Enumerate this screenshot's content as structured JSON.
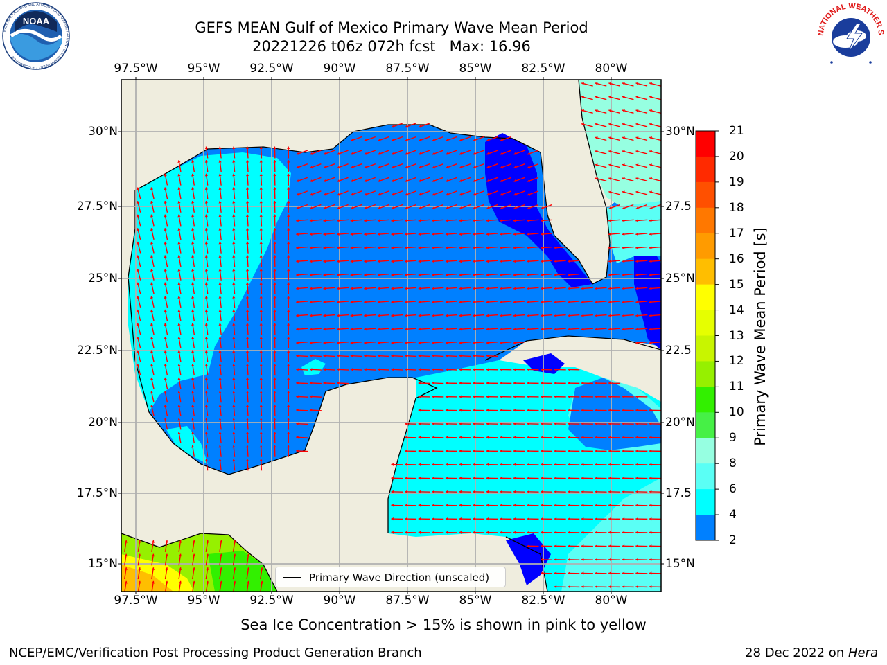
{
  "title": {
    "line1": "GEFS MEAN Gulf of Mexico Primary Wave Mean Period",
    "line2": "20221226 t06z 072h fcst   Max: 16.96"
  },
  "map": {
    "lon_ticks": [
      "97.5°W",
      "95°W",
      "92.5°W",
      "90°W",
      "87.5°W",
      "85°W",
      "82.5°W",
      "80°W"
    ],
    "lat_ticks_left": [
      "30°N",
      "27.5°N",
      "25°N",
      "22.5°N",
      "20°N",
      "17.5°N",
      "15°N"
    ],
    "lat_ticks_right": [
      "30°N",
      "27.5",
      "25°N",
      "22.5",
      "20°N",
      "17.5",
      "15°N"
    ],
    "legend_label": "Primary Wave Direction (unscaled)",
    "land_color": "#efedde",
    "grid_color": "#b0b0b0",
    "arrow_color": "#ff0000"
  },
  "colorbar": {
    "title": "Primary Wave Mean Period [s]",
    "labels": [
      "21",
      "20",
      "19",
      "18",
      "17",
      "16",
      "15",
      "14",
      "13",
      "12",
      "11",
      "10",
      "9",
      "8",
      "6",
      "4",
      "2"
    ],
    "colors": [
      "#ff0000",
      "#ff2a00",
      "#ff5000",
      "#ff7800",
      "#ff9b00",
      "#ffbe00",
      "#ffff00",
      "#e6ff00",
      "#c8f500",
      "#96f000",
      "#32f000",
      "#46f046",
      "#96ffe1",
      "#5afff5",
      "#00ffff",
      "#0080ff",
      "#0000ff"
    ]
  },
  "logos": {
    "noaa_text": "NOAA",
    "noaa_ring": "NATIONAL OCEANIC AND ATMOSPHERIC ADMINISTRATION · U.S. DEPARTMENT OF COMMERCE",
    "nws_ring": "NATIONAL WEATHER SERVICE"
  },
  "caption": "Sea Ice Concentration > 15% is shown in pink to yellow",
  "footer": {
    "left": "NCEP/EMC/Verification Post Processing Product Generation Branch",
    "right_date": "28 Dec 2022 on ",
    "right_host": "Hera"
  }
}
